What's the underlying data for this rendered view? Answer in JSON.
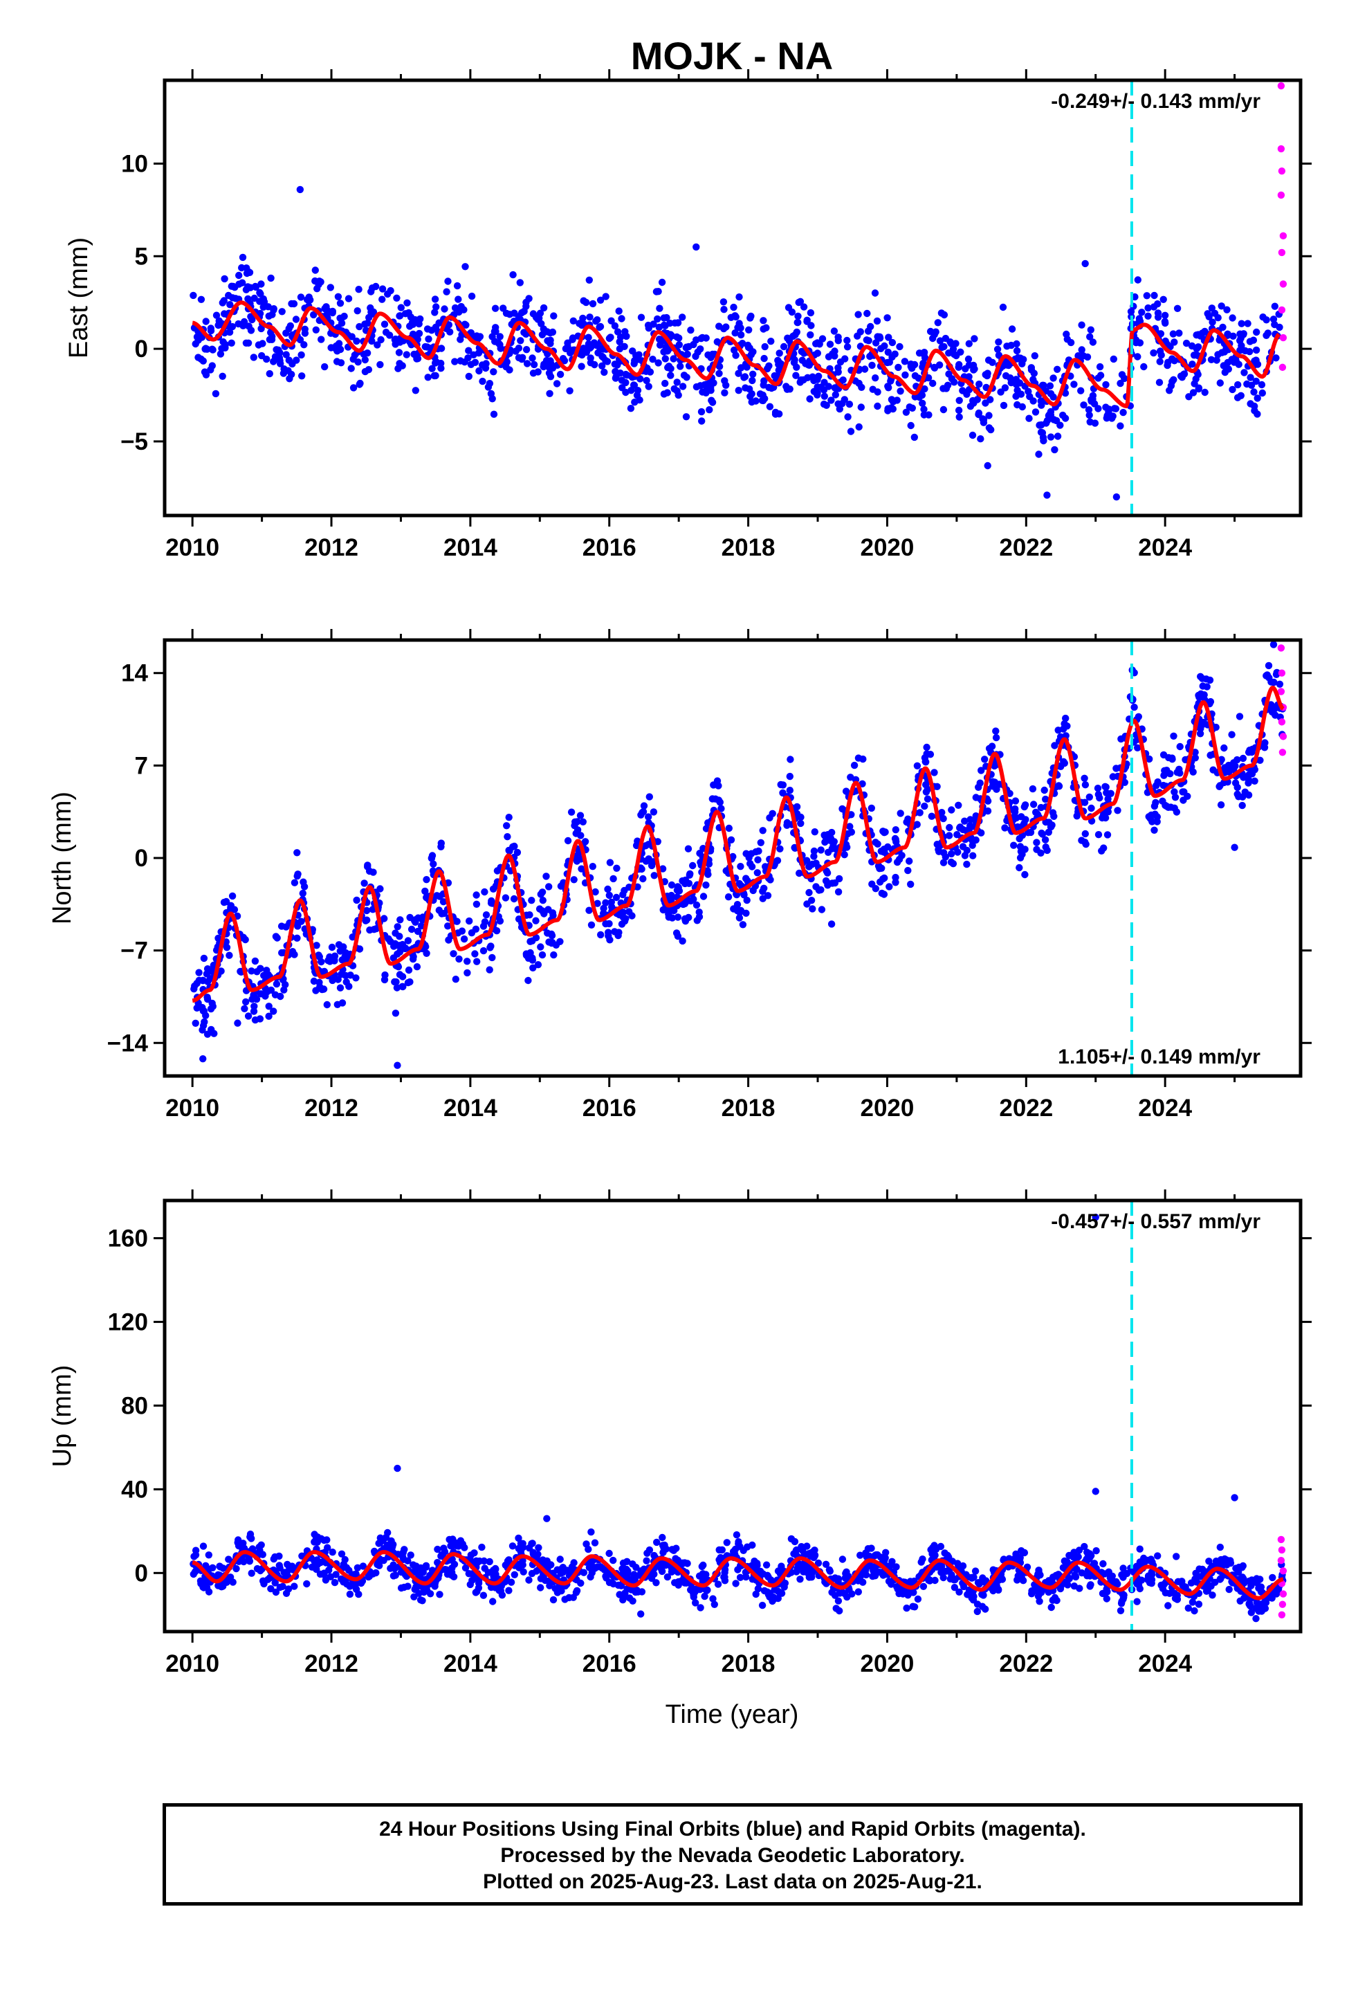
{
  "chart_data": {
    "type": "scatter",
    "title": "MOJK - NA",
    "xlabel": "Time (year)",
    "x_ticks": [
      "2010",
      "2012",
      "2014",
      "2016",
      "2018",
      "2020",
      "2022",
      "2024"
    ],
    "xlim": [
      2009.6,
      2025.95
    ],
    "offset_line_year": 2023.52,
    "legend": "none",
    "grid": false,
    "colors": {
      "final": "#0000ff",
      "rapid": "#ff00ff",
      "model": "#ff0000",
      "offset": "#00e5ee"
    },
    "panels": [
      {
        "name": "east",
        "ylabel": "East (mm)",
        "ylim": [
          -9,
          14.5
        ],
        "y_ticks": [
          10,
          5,
          0,
          -5
        ],
        "y_tick_labels": [
          "10",
          "5",
          "0",
          "−5"
        ],
        "rate_text": "-0.249+/- 0.143 mm/yr",
        "rate_position": "top-right",
        "model": {
          "x": [
            2010.0,
            2010.3,
            2010.7,
            2011.1,
            2011.4,
            2011.7,
            2012.1,
            2012.4,
            2012.7,
            2013.1,
            2013.4,
            2013.7,
            2014.1,
            2014.4,
            2014.7,
            2015.1,
            2015.4,
            2015.7,
            2016.1,
            2016.4,
            2016.7,
            2017.1,
            2017.4,
            2017.7,
            2018.1,
            2018.4,
            2018.7,
            2019.1,
            2019.4,
            2019.7,
            2020.1,
            2020.4,
            2020.7,
            2021.1,
            2021.4,
            2021.7,
            2022.1,
            2022.4,
            2022.7,
            2023.1,
            2023.45,
            2023.53,
            2023.7,
            2024.1,
            2024.4,
            2024.7,
            2025.1,
            2025.4,
            2025.65
          ],
          "y": [
            1.4,
            0.5,
            2.5,
            1.2,
            0.2,
            2.2,
            0.9,
            -0.1,
            1.9,
            0.6,
            -0.5,
            1.7,
            0.3,
            -0.8,
            1.4,
            0.0,
            -1.1,
            1.2,
            -0.3,
            -1.4,
            0.9,
            -0.6,
            -1.6,
            0.6,
            -0.9,
            -1.9,
            0.4,
            -1.2,
            -2.1,
            0.1,
            -1.5,
            -2.4,
            -0.1,
            -1.7,
            -2.6,
            -0.4,
            -2.0,
            -3.0,
            -0.6,
            -2.2,
            -3.1,
            1.0,
            1.3,
            -0.2,
            -1.2,
            1.0,
            -0.4,
            -1.5,
            0.8
          ]
        },
        "scatter_band": 2.2,
        "outliers": [
          [
            2011.55,
            8.6
          ],
          [
            2022.85,
            4.6
          ],
          [
            2017.25,
            5.5
          ],
          [
            2023.3,
            -8.0
          ],
          [
            2022.3,
            -7.9
          ]
        ],
        "rapid": [
          [
            2025.67,
            14.2
          ],
          [
            2025.67,
            10.8
          ],
          [
            2025.68,
            9.6
          ],
          [
            2025.67,
            8.3
          ],
          [
            2025.7,
            6.1
          ],
          [
            2025.68,
            5.2
          ],
          [
            2025.7,
            3.5
          ],
          [
            2025.68,
            2.1
          ],
          [
            2025.7,
            0.6
          ],
          [
            2025.69,
            -1.0
          ]
        ]
      },
      {
        "name": "north",
        "ylabel": "North (mm)",
        "ylim": [
          -16.5,
          16.5
        ],
        "y_ticks": [
          14,
          7,
          0,
          -7,
          -14
        ],
        "y_tick_labels": [
          "14",
          "7",
          "0",
          "−7",
          "−14"
        ],
        "rate_text": "1.105+/- 0.149 mm/yr",
        "rate_position": "bottom-right",
        "model": {
          "x": [
            2010.0,
            2010.25,
            2010.55,
            2010.85,
            2011.25,
            2011.55,
            2011.85,
            2012.25,
            2012.55,
            2012.85,
            2013.25,
            2013.55,
            2013.85,
            2014.25,
            2014.55,
            2014.85,
            2015.25,
            2015.55,
            2015.85,
            2016.25,
            2016.55,
            2016.85,
            2017.25,
            2017.55,
            2017.85,
            2018.25,
            2018.55,
            2018.85,
            2019.25,
            2019.55,
            2019.85,
            2020.25,
            2020.55,
            2020.85,
            2021.25,
            2021.55,
            2021.85,
            2022.25,
            2022.55,
            2022.85,
            2023.25,
            2023.55,
            2023.85,
            2024.25,
            2024.55,
            2024.85,
            2025.25,
            2025.55,
            2025.7
          ],
          "y": [
            -10.8,
            -10.0,
            -4.2,
            -10.0,
            -9.0,
            -3.2,
            -9.0,
            -8.0,
            -2.2,
            -8.0,
            -6.9,
            -1.0,
            -6.9,
            -5.8,
            0.2,
            -5.8,
            -4.7,
            1.3,
            -4.7,
            -3.6,
            2.4,
            -3.6,
            -2.5,
            3.5,
            -2.5,
            -1.4,
            4.6,
            -1.4,
            -0.3,
            5.7,
            -0.3,
            0.8,
            6.8,
            0.8,
            1.9,
            7.9,
            1.9,
            3.0,
            9.0,
            3.0,
            4.1,
            10.4,
            4.7,
            5.9,
            11.8,
            6.0,
            7.0,
            12.9,
            11.3
          ]
        },
        "scatter_band": 2.6,
        "outliers": [
          [
            2010.15,
            -15.2
          ],
          [
            2012.95,
            -15.7
          ],
          [
            2010.65,
            -12.5
          ],
          [
            2025.0,
            0.8
          ],
          [
            2019.2,
            -5.0
          ]
        ],
        "rapid": [
          [
            2025.67,
            15.9
          ],
          [
            2025.68,
            14.0
          ],
          [
            2025.67,
            12.6
          ],
          [
            2025.7,
            11.4
          ],
          [
            2025.68,
            10.3
          ],
          [
            2025.7,
            9.2
          ],
          [
            2025.69,
            8.0
          ]
        ]
      },
      {
        "name": "up",
        "ylabel": "Up (mm)",
        "ylim": [
          -28,
          178
        ],
        "y_ticks": [
          160,
          120,
          80,
          40,
          0
        ],
        "y_tick_labels": [
          "160",
          "120",
          "80",
          "40",
          "0"
        ],
        "rate_text": "-0.457+/- 0.557 mm/yr",
        "rate_position": "top-right",
        "model": {
          "x": [
            2010.0,
            2010.35,
            2010.75,
            2011.35,
            2011.75,
            2012.35,
            2012.75,
            2013.35,
            2013.75,
            2014.35,
            2014.75,
            2015.35,
            2015.75,
            2016.35,
            2016.75,
            2017.35,
            2017.75,
            2018.35,
            2018.75,
            2019.35,
            2019.75,
            2020.35,
            2020.75,
            2021.35,
            2021.75,
            2022.35,
            2022.75,
            2023.35,
            2023.75,
            2024.35,
            2024.75,
            2025.35,
            2025.7
          ],
          "y": [
            5,
            -4,
            10,
            -4,
            10,
            -3,
            10,
            -5,
            9,
            -5,
            8,
            -5,
            8,
            -6,
            7,
            -6,
            7,
            -6,
            7,
            -7,
            6,
            -7,
            6,
            -8,
            5,
            -7,
            5,
            -8,
            3,
            -10,
            2,
            -12,
            -3
          ]
        },
        "scatter_band": 9,
        "outliers": [
          [
            2012.95,
            50
          ],
          [
            2015.1,
            26
          ],
          [
            2023.0,
            39
          ],
          [
            2025.0,
            36
          ],
          [
            2023.0,
            170
          ]
        ],
        "rapid": [
          [
            2025.67,
            16
          ],
          [
            2025.68,
            11
          ],
          [
            2025.67,
            6
          ],
          [
            2025.7,
            1
          ],
          [
            2025.68,
            -5
          ],
          [
            2025.7,
            -10
          ],
          [
            2025.69,
            -15
          ],
          [
            2025.68,
            -20
          ]
        ]
      }
    ]
  },
  "caption": {
    "line1": "24 Hour Positions Using Final Orbits (blue) and Rapid Orbits (magenta).",
    "line2": "Processed by the Nevada Geodetic Laboratory.",
    "line3": "Plotted on 2025-Aug-23. Last data on 2025-Aug-21."
  }
}
